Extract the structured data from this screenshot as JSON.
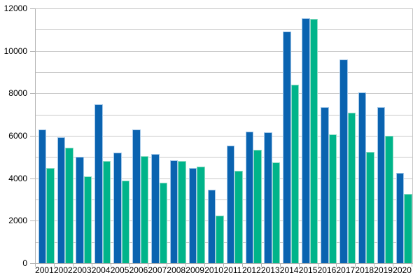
{
  "chart_data": {
    "type": "bar",
    "title": "",
    "xlabel": "",
    "ylabel": "",
    "categories": [
      "2001",
      "2002",
      "2003",
      "2004",
      "2005",
      "2006",
      "2007",
      "2008",
      "2009",
      "2010",
      "2011",
      "2012",
      "2013",
      "2014",
      "2015",
      "2016",
      "2017",
      "2018",
      "2019",
      "2020"
    ],
    "series": [
      {
        "name": "series-1-blue",
        "color": "#0a63b0",
        "border_color": "#a2c7e8",
        "values": [
          6300,
          5950,
          5000,
          7480,
          5200,
          6300,
          5150,
          4850,
          4500,
          3450,
          5550,
          6200,
          6150,
          10900,
          11550,
          7350,
          9600,
          8050,
          7350,
          4250
        ]
      },
      {
        "name": "series-2-green",
        "color": "#00b48a",
        "border_color": "#90dcc4",
        "values": [
          4500,
          5450,
          4100,
          4800,
          3900,
          5050,
          3800,
          4800,
          4550,
          2250,
          4350,
          5350,
          4750,
          8400,
          11500,
          6050,
          7100,
          5250,
          6000,
          3250
        ]
      }
    ],
    "ylim": [
      0,
      12000
    ],
    "y_tick_labels": [
      "0",
      "2000",
      "4000",
      "6000",
      "8000",
      "10000",
      "12000"
    ],
    "y_label_interval": 2000,
    "y_gridline_interval": 1000,
    "grid": true,
    "legend_position": "none",
    "colors": {
      "background": "#ffffff",
      "gridline": "#c9c9c9",
      "axis": "#b3b3b3",
      "text": "#000000"
    }
  }
}
